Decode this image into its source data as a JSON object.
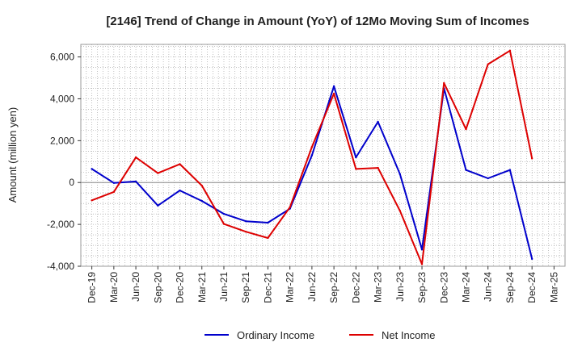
{
  "chart_data": {
    "type": "line",
    "title": "[2146]  Trend of Change in Amount (YoY) of 12Mo Moving Sum of Incomes",
    "ylabel": "Amount (million yen)",
    "xlabel": "",
    "ylim": [
      -4000,
      6600
    ],
    "yticks": [
      -4000,
      -2000,
      0,
      2000,
      4000,
      6000
    ],
    "ytick_labels": [
      "-4,000",
      "-2,000",
      "0",
      "2,000",
      "4,000",
      "6,000"
    ],
    "categories": [
      "Dec-19",
      "Mar-20",
      "Jun-20",
      "Sep-20",
      "Dec-20",
      "Mar-21",
      "Jun-21",
      "Sep-21",
      "Dec-21",
      "Mar-22",
      "Jun-22",
      "Sep-22",
      "Dec-22",
      "Mar-23",
      "Jun-23",
      "Sep-23",
      "Dec-23",
      "Mar-24",
      "Jun-24",
      "Sep-24",
      "Dec-24",
      "Mar-25"
    ],
    "series": [
      {
        "name": "Ordinary Income",
        "color": "#0000cc",
        "values": [
          650,
          -20,
          50,
          -1100,
          -380,
          -880,
          -1500,
          -1850,
          -1920,
          -1250,
          1300,
          4600,
          1200,
          2900,
          400,
          -3200,
          4500,
          600,
          200,
          600,
          -3650,
          null
        ]
      },
      {
        "name": "Net Income",
        "color": "#dd0000",
        "values": [
          -850,
          -450,
          1200,
          450,
          880,
          -150,
          -1980,
          -2350,
          -2650,
          -1180,
          1700,
          4250,
          650,
          700,
          -1350,
          -3900,
          4750,
          2550,
          5650,
          6300,
          1150,
          null
        ]
      }
    ],
    "grid": true,
    "legend_position": "bottom-center"
  }
}
